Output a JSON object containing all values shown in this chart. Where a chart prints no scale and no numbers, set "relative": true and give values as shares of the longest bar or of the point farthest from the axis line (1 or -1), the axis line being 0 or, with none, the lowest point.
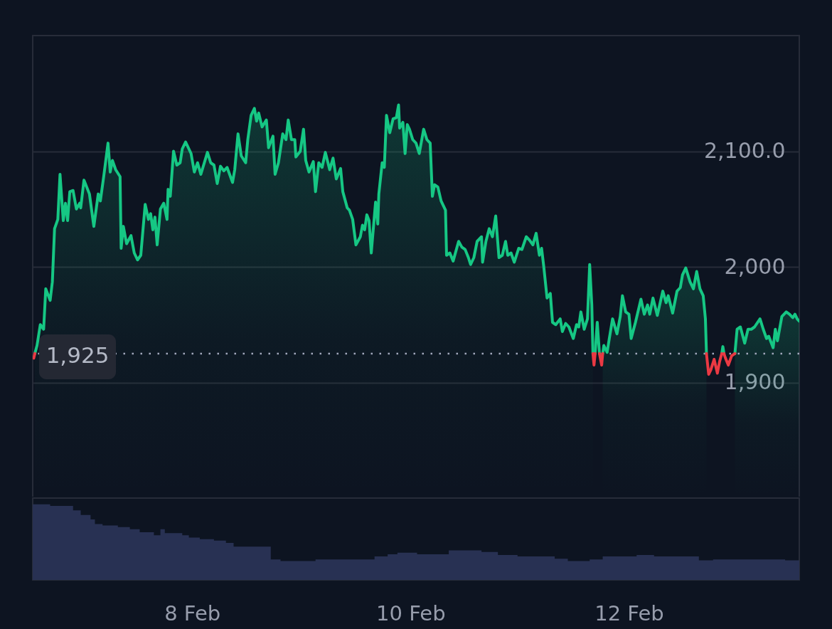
{
  "chart_data": [
    {
      "type": "area",
      "xlim": [
        "--02-06T12:58",
        "--02-13T13:26"
      ],
      "ylim": [
        1800,
        2200
      ],
      "yticks": [
        {
          "value": 1900,
          "label": "1,900"
        },
        {
          "value": 2000,
          "label": "2,000"
        },
        {
          "value": 2100,
          "label": "2,100.0"
        }
      ],
      "grid": "y",
      "tick_labels": "y",
      "series": [
        {
          "color": "#16c784",
          "x": [
            "--02-06T13:26",
            "--02-06T13:55",
            "--02-06T14:38",
            "--02-06T15:22",
            "--02-06T15:50",
            "--02-06T16:48",
            "--02-06T17:17",
            "--02-06T17:46",
            "--02-06T18:29",
            "--02-06T18:58",
            "--02-06T19:41",
            "--02-06T20:10",
            "--02-06T20:38",
            "--02-06T21:07",
            "--02-06T21:50",
            "--02-06T22:34",
            "--02-06T23:17",
            "--02-06T23:31",
            "--02-07T00:14",
            "--02-07T01:26",
            "--02-07T02:24",
            "--02-07T03:22",
            "--02-07T03:50",
            "--02-07T04:34",
            "--02-07T05:31",
            "--02-07T06:00",
            "--02-07T06:29",
            "--02-07T07:12",
            "--02-07T08:10",
            "--02-07T08:24",
            "--02-07T08:53",
            "--02-07T09:36",
            "--02-07T10:34",
            "--02-07T11:17",
            "--02-07T12:00",
            "--02-07T12:43",
            "--02-07T13:41",
            "--02-07T14:24",
            "--02-07T14:53",
            "--02-07T15:22",
            "--02-07T15:50",
            "--02-07T16:19",
            "--02-07T17:02",
            "--02-07T17:46",
            "--02-07T18:29",
            "--02-07T18:43",
            "--02-07T19:12",
            "--02-07T19:55",
            "--02-07T20:38",
            "--02-07T21:22",
            "--02-07T21:50",
            "--02-07T22:34",
            "--02-07T23:46",
            "--02-08T00:29",
            "--02-08T01:12",
            "--02-08T01:55",
            "--02-08T03:22",
            "--02-08T04:05",
            "--02-08T04:48",
            "--02-08T05:31",
            "--02-08T06:14",
            "--02-08T06:58",
            "--02-08T07:41",
            "--02-08T08:53",
            "--02-08T09:22",
            "--02-08T10:05",
            "--02-08T10:48",
            "--02-08T11:46",
            "--02-08T12:14",
            "--02-08T12:58",
            "--02-08T13:41",
            "--02-08T14:10",
            "--02-08T14:38",
            "--02-08T15:22",
            "--02-08T16:19",
            "--02-08T16:48",
            "--02-08T17:46",
            "--02-08T18:14",
            "--02-08T18:58",
            "--02-08T19:55",
            "--02-08T20:38",
            "--02-08T21:07",
            "--02-08T21:50",
            "--02-08T22:34",
            "--02-08T22:48",
            "--02-08T23:46",
            "--02-09T00:29",
            "--02-09T00:58",
            "--02-09T01:41",
            "--02-09T02:38",
            "--02-09T03:07",
            "--02-09T03:50",
            "--02-09T04:34",
            "--02-09T05:17",
            "--02-09T06:14",
            "--02-09T06:58",
            "--02-09T07:41",
            "--02-09T08:38",
            "--02-09T09:07",
            "--02-09T10:05",
            "--02-09T10:34",
            "--02-09T11:17",
            "--02-09T12:00",
            "--02-09T12:58",
            "--02-09T13:26",
            "--02-09T13:55",
            "--02-09T14:24",
            "--02-09T14:53",
            "--02-09T15:22",
            "--02-09T16:19",
            "--02-09T16:48",
            "--02-09T17:02",
            "--02-09T17:46",
            "--02-09T18:14",
            "--02-09T18:43",
            "--02-09T19:26",
            "--02-09T20:10",
            "--02-09T20:53",
            "--02-09T21:22",
            "--02-09T21:36",
            "--02-09T22:19",
            "--02-09T22:48",
            "--02-09T23:17",
            "--02-09T23:46",
            "--02-10T00:29",
            "--02-10T01:12",
            "--02-10T01:55",
            "--02-10T02:53",
            "--02-10T03:36",
            "--02-10T04:19",
            "--02-10T04:48",
            "--02-10T05:17",
            "--02-10T06:00",
            "--02-10T06:43",
            "--02-10T07:41",
            "--02-10T07:55",
            "--02-10T08:38",
            "--02-10T09:22",
            "--02-10T10:34",
            "--02-10T11:17",
            "--02-10T12:00",
            "--02-10T12:43",
            "--02-10T13:12",
            "--02-10T13:55",
            "--02-10T14:38",
            "--02-10T15:36",
            "--02-10T15:50",
            "--02-10T16:34",
            "--02-10T17:17",
            "--02-10T18:00",
            "--02-10T18:43",
            "--02-10T19:26",
            "--02-10T20:10",
            "--02-10T20:53",
            "--02-10T21:22",
            "--02-10T22:05",
            "--02-10T22:48",
            "--02-10T23:46",
            "--02-11T00:29",
            "--02-11T01:26",
            "--02-11T02:10",
            "--02-11T02:53",
            "--02-11T03:36",
            "--02-11T04:19",
            "--02-11T04:48",
            "--02-11T05:17",
            "--02-11T06:00",
            "--02-11T06:43",
            "--02-11T07:12",
            "--02-11T07:55",
            "--02-11T08:53",
            "--02-11T09:22",
            "--02-11T10:05",
            "--02-11T10:48",
            "--02-11T11:46",
            "--02-11T12:29",
            "--02-11T12:58",
            "--02-11T13:26",
            "--02-11T14:10",
            "--02-11T14:53",
            "--02-11T15:22",
            "--02-11T15:50",
            "--02-11T16:05"
          ],
          "values": [
            1925,
            1932,
            1950,
            1946,
            1981,
            1971,
            1987,
            2033,
            2041,
            2080,
            2040,
            2055,
            2040,
            2065,
            2066,
            2050,
            2055,
            2051,
            2075,
            2063,
            2035,
            2063,
            2057,
            2078,
            2107,
            2082,
            2092,
            2084,
            2078,
            2016,
            2035,
            2020,
            2027,
            2012,
            2006,
            2010,
            2054,
            2041,
            2046,
            2032,
            2043,
            2019,
            2050,
            2055,
            2041,
            2067,
            2061,
            2100,
            2088,
            2090,
            2102,
            2108,
            2098,
            2082,
            2090,
            2080,
            2099,
            2090,
            2088,
            2072,
            2087,
            2083,
            2086,
            2073,
            2084,
            2115,
            2096,
            2090,
            2110,
            2131,
            2137,
            2126,
            2133,
            2121,
            2127,
            2103,
            2113,
            2080,
            2090,
            2115,
            2110,
            2127,
            2110,
            2110,
            2095,
            2100,
            2119,
            2092,
            2082,
            2091,
            2065,
            2090,
            2086,
            2099,
            2084,
            2094,
            2076,
            2085,
            2065,
            2051,
            2049,
            2041,
            2019,
            2026,
            2036,
            2032,
            2045,
            2040,
            2012,
            2056,
            2037,
            2063,
            2090,
            2086,
            2131,
            2116,
            2128,
            2129,
            2140,
            2120,
            2125,
            2098,
            2123,
            2119,
            2110,
            2107,
            2098,
            2119,
            2110,
            2107,
            2061,
            2071,
            2069,
            2057,
            2049,
            2010,
            2012,
            2005,
            2022,
            2017,
            2015,
            2008,
            2002,
            2008,
            2022,
            2026,
            2004,
            2022,
            2033,
            2026,
            2044,
            2008,
            2010,
            2022,
            2010,
            2012,
            2004,
            2016,
            2015,
            2026,
            2023,
            2019,
            2029,
            2010,
            2016,
            2000,
            1973,
            1977,
            1952,
            1950,
            1955,
            1944,
            1951,
            1948,
            1938,
            1950,
            1948,
            1961,
            1946,
            1955,
            2002,
            1967,
            1925
          ]
        },
        {
          "type": "line",
          "color": "#16c784",
          "x": [
            "--02-11T16:34",
            "--02-11T17:02",
            "--02-11T17:31",
            "--02-12T18:00",
            "--02-12T20:24",
            "--02-12T20:38",
            "--02-12T20:53"
          ],
          "values": [
            1925,
            1952,
            1925,
            null,
            1925,
            1931,
            1925
          ]
        },
        {
          "color": "#16c784",
          "x": [
            "--02-11T18:14",
            "--02-11T18:29",
            "--02-11T19:12",
            "--02-11T19:41",
            "--02-11T20:24",
            "--02-11T21:22",
            "--02-11T22:05",
            "--02-11T22:34",
            "--02-11T23:17",
            "--02-12T00:00",
            "--02-12T00:29",
            "--02-12T01:26",
            "--02-12T02:38",
            "--02-12T03:22",
            "--02-12T04:05",
            "--02-12T04:34",
            "--02-12T05:17",
            "--02-12T06:14",
            "--02-12T07:26",
            "--02-12T08:10",
            "--02-12T08:38",
            "--02-12T09:36",
            "--02-12T10:34",
            "--02-12T11:17",
            "--02-12T11:46",
            "--02-12T12:29",
            "--02-12T13:26",
            "--02-12T14:10",
            "--02-12T14:53",
            "--02-12T15:36",
            "--02-12T16:19",
            "--02-12T16:48",
            "--02-12T17:02"
          ],
          "values": [
            1925,
            1932,
            1926,
            1938,
            1955,
            1942,
            1957,
            1975,
            1961,
            1959,
            1938,
            1952,
            1972,
            1959,
            1967,
            1959,
            1973,
            1958,
            1979,
            1969,
            1975,
            1960,
            1979,
            1982,
            1993,
            1999,
            1987,
            1981,
            1996,
            1981,
            1975,
            1955,
            1925
          ]
        },
        {
          "color": "#16c784",
          "x": [
            "--02-12T23:17",
            "--02-12T23:46",
            "--02-13T00:29",
            "--02-13T01:26",
            "--02-13T02:10",
            "--02-13T02:53",
            "--02-13T03:36",
            "--02-13T04:48",
            "--02-13T05:31",
            "--02-13T06:14",
            "--02-13T06:43",
            "--02-13T07:41",
            "--02-13T08:10",
            "--02-13T08:38",
            "--02-13T09:36",
            "--02-13T10:34",
            "--02-13T11:17",
            "--02-13T12:00",
            "--02-13T12:29",
            "--02-13T12:58",
            "--02-13T13:26"
          ],
          "values": [
            1925,
            1946,
            1948,
            1934,
            1946,
            1946,
            1948,
            1955,
            1946,
            1938,
            1940,
            1930,
            1946,
            1936,
            1957,
            1961,
            1959,
            1956,
            1959,
            1955,
            1953
          ]
        },
        {
          "type": "line",
          "color": "#ea3943",
          "x": [
            "--02-06T13:12",
            "--02-06T13:26",
            "--02-06T13:55",
            "--02-11T16:05",
            "--02-11T16:19",
            "--02-11T16:34",
            "--02-11T17:02",
            "--02-11T17:31",
            "--02-11T18:00",
            "--02-11T18:14",
            "--02-11T18:29",
            "--02-12T17:02",
            "--02-12T17:31",
            "--02-12T18:00",
            "--02-12T18:43",
            "--02-12T19:26",
            "--02-12T19:55",
            "--02-12T20:24",
            "--02-12T20:38",
            "--02-12T20:53",
            "--02-12T21:07",
            "--02-12T21:50",
            "--02-12T22:34",
            "--02-12T23:17"
          ],
          "values": [
            1921,
            1925,
            null,
            1925,
            1915,
            1925,
            null,
            1925,
            1915,
            1925,
            null,
            1925,
            1907,
            1911,
            1920,
            1908,
            1918,
            1925,
            null,
            1925,
            1922,
            1915,
            1923,
            1925
          ]
        }
      ],
      "ref_lines": [
        {
          "axis": "y",
          "value": 1925,
          "label": "1,925",
          "line_style": "dotted",
          "color": "#a1a7bb"
        }
      ]
    },
    {
      "type": "area",
      "relative": true,
      "color": "#283153",
      "x": [
        "--02-06T12:58",
        "--02-06T16:48",
        "--02-06T16:48",
        "--02-06T21:50",
        "--02-06T21:50",
        "--02-06T23:31",
        "--02-06T23:31",
        "--02-07T01:41",
        "--02-07T01:41",
        "--02-07T02:38",
        "--02-07T02:38",
        "--02-07T04:19",
        "--02-07T04:19",
        "--02-07T07:41",
        "--02-07T07:41",
        "--02-07T10:19",
        "--02-07T10:19",
        "--02-07T12:29",
        "--02-07T12:29",
        "--02-07T15:36",
        "--02-07T15:36",
        "--02-07T17:02",
        "--02-07T17:02",
        "--02-07T18:00",
        "--02-07T18:00",
        "--02-07T21:50",
        "--02-07T21:50",
        "--02-07T23:17",
        "--02-07T23:17",
        "--02-08T01:41",
        "--02-08T01:41",
        "--02-08T04:48",
        "--02-08T04:48",
        "--02-08T07:26",
        "--02-08T07:26",
        "--02-08T09:07",
        "--02-08T09:07",
        "--02-08T17:17",
        "--02-08T17:17",
        "--02-08T19:26",
        "--02-08T19:26",
        "--02-09T03:07",
        "--02-09T03:07",
        "--02-09T16:05",
        "--02-09T16:05",
        "--02-09T18:58",
        "--02-09T18:58",
        "--02-09T21:07",
        "--02-09T21:07",
        "--02-10T01:26",
        "--02-10T01:26",
        "--02-10T08:24",
        "--02-10T08:24",
        "--02-10T15:36",
        "--02-10T15:36",
        "--02-10T19:12",
        "--02-10T19:12",
        "--02-10T23:31",
        "--02-10T23:31",
        "--02-11T07:41",
        "--02-11T07:41",
        "--02-11T10:34",
        "--02-11T10:34",
        "--02-11T15:22",
        "--02-11T15:22",
        "--02-11T18:14",
        "--02-11T18:14",
        "--02-12T01:41",
        "--02-12T01:41",
        "--02-12T05:31",
        "--02-12T05:31",
        "--02-12T15:22",
        "--02-12T15:22",
        "--02-12T18:29",
        "--02-12T18:29",
        "--02-13T10:19",
        "--02-13T10:19",
        "--02-13T13:26"
      ],
      "values": [
        1,
        1,
        0.98,
        0.98,
        0.92,
        0.92,
        0.86,
        0.86,
        0.8,
        0.8,
        0.74,
        0.74,
        0.72,
        0.72,
        0.7,
        0.7,
        0.67,
        0.67,
        0.63,
        0.63,
        0.59,
        0.59,
        0.67,
        0.67,
        0.62,
        0.62,
        0.59,
        0.59,
        0.56,
        0.56,
        0.54,
        0.54,
        0.52,
        0.52,
        0.49,
        0.49,
        0.44,
        0.44,
        0.27,
        0.27,
        0.25,
        0.25,
        0.27,
        0.27,
        0.31,
        0.31,
        0.34,
        0.34,
        0.36,
        0.36,
        0.34,
        0.34,
        0.39,
        0.39,
        0.37,
        0.37,
        0.33,
        0.33,
        0.31,
        0.31,
        0.28,
        0.28,
        0.25,
        0.25,
        0.27,
        0.27,
        0.31,
        0.31,
        0.33,
        0.33,
        0.31,
        0.31,
        0.26,
        0.26,
        0.27,
        0.27,
        0.26,
        0.26
      ],
      "xlim": [
        "--02-06T12:58",
        "--02-13T13:26"
      ],
      "xticks": [
        {
          "value": "--02-08",
          "label": "8 Feb"
        },
        {
          "value": "--02-10",
          "label": "10 Feb"
        },
        {
          "value": "--02-12",
          "label": "12 Feb"
        }
      ],
      "tick_labels": "x"
    }
  ]
}
